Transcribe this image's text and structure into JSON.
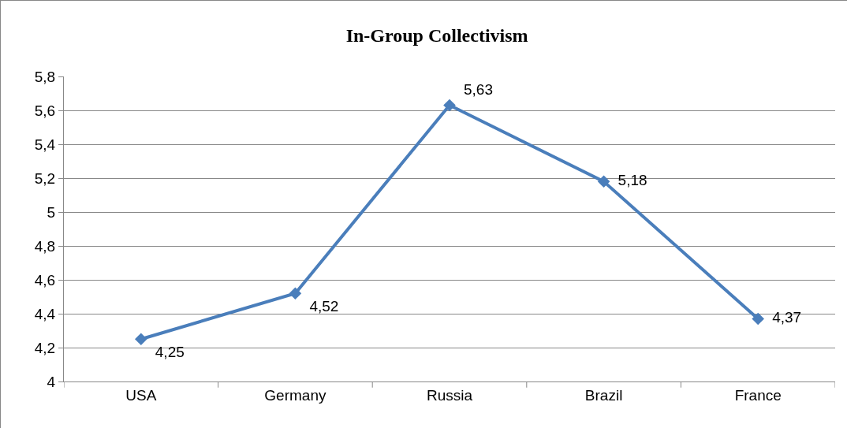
{
  "chart_data": {
    "type": "line",
    "title": "In-Group Collectivism",
    "categories": [
      "USA",
      "Germany",
      "Russia",
      "Brazil",
      "France"
    ],
    "series": [
      {
        "color": "#4a7ebb",
        "values": [
          4.25,
          4.52,
          5.63,
          5.18,
          4.37
        ],
        "value_labels": [
          "4,25",
          "4,52",
          "5,63",
          "5,18",
          "4,37"
        ]
      }
    ],
    "ylim": [
      4,
      5.8
    ],
    "yticks": [
      4,
      {
        "value": 4.2,
        "label": "4,2"
      },
      {
        "value": 4.4,
        "label": "4,4"
      },
      {
        "value": 4.6,
        "label": "4,6"
      },
      {
        "value": 4.8,
        "label": "4,8"
      },
      5,
      {
        "value": 5.2,
        "label": "5,2"
      },
      {
        "value": 5.4,
        "label": "5,4"
      },
      {
        "value": 5.6,
        "label": "5,6"
      },
      {
        "value": 5.8,
        "label": "5,8"
      }
    ],
    "grid": "y",
    "legend": false,
    "marker": "diamond",
    "line_style": "solid"
  }
}
